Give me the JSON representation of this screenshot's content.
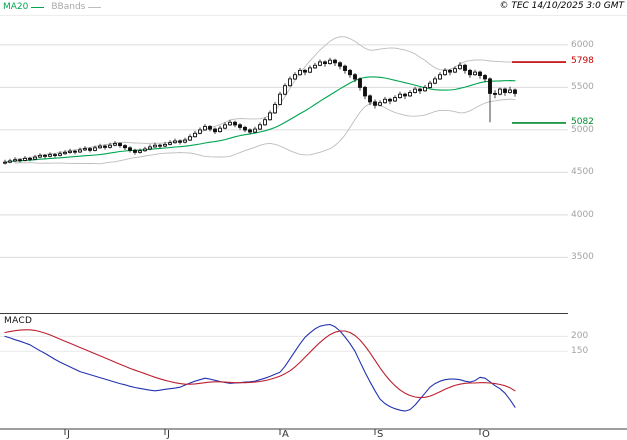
{
  "header": {
    "ma20_label": "MA20",
    "bbands_label": "BBands",
    "copyright": "© TEC 14/10/2025 3:0 GMT"
  },
  "colors": {
    "ma20": "#00a550",
    "bbands": "#bdbdbd",
    "grid": "#dcdcdc",
    "axis_text": "#a3a3a3",
    "candle": "#111111",
    "separator": "#3c3c3c",
    "resistance": "#c00000",
    "support": "#008a2e",
    "macd_line": "#2333b0",
    "macd_signal": "#bb2030"
  },
  "chart_data": [
    {
      "type": "candlestick",
      "title": "",
      "ylim": [
        2870,
        6340
      ],
      "yticks": [
        {
          "label": "6000",
          "value": 6000
        },
        {
          "label": "5500",
          "value": 5500
        },
        {
          "label": "5000",
          "value": 5000
        },
        {
          "label": "4500",
          "value": 4500
        },
        {
          "label": "4000",
          "value": 4000
        },
        {
          "label": "3500",
          "value": 3500
        }
      ],
      "levels": [
        {
          "label": "5798",
          "value": 5798,
          "color": "#c00000"
        },
        {
          "label": "5082",
          "value": 5082,
          "color": "#008a2e"
        }
      ],
      "overlays": [
        {
          "name": "MA20",
          "type": "sma",
          "window": 20
        },
        {
          "name": "BBands",
          "type": "bollinger",
          "window": 20,
          "stdev": 2
        }
      ],
      "x_labels": [
        "J",
        "J",
        "A",
        "S",
        "O"
      ],
      "x_label_indices": [
        12,
        32,
        55,
        74,
        95
      ],
      "candles": [
        [
          4610,
          4648,
          4595,
          4620
        ],
        [
          4620,
          4662,
          4608,
          4635
        ],
        [
          4635,
          4678,
          4622,
          4650
        ],
        [
          4650,
          4666,
          4618,
          4640
        ],
        [
          4640,
          4692,
          4630,
          4665
        ],
        [
          4665,
          4684,
          4632,
          4655
        ],
        [
          4655,
          4706,
          4645,
          4680
        ],
        [
          4680,
          4726,
          4668,
          4700
        ],
        [
          4700,
          4718,
          4664,
          4690
        ],
        [
          4690,
          4736,
          4678,
          4710
        ],
        [
          4710,
          4728,
          4676,
          4700
        ],
        [
          4700,
          4748,
          4688,
          4720
        ],
        [
          4720,
          4762,
          4706,
          4735
        ],
        [
          4735,
          4778,
          4722,
          4750
        ],
        [
          4750,
          4768,
          4714,
          4740
        ],
        [
          4740,
          4792,
          4728,
          4765
        ],
        [
          4765,
          4808,
          4752,
          4780
        ],
        [
          4780,
          4798,
          4736,
          4760
        ],
        [
          4760,
          4816,
          4748,
          4790
        ],
        [
          4790,
          4838,
          4778,
          4810
        ],
        [
          4810,
          4828,
          4768,
          4795
        ],
        [
          4795,
          4848,
          4782,
          4820
        ],
        [
          4820,
          4868,
          4806,
          4840
        ],
        [
          4840,
          4856,
          4790,
          4815
        ],
        [
          4815,
          4832,
          4764,
          4790
        ],
        [
          4790,
          4806,
          4734,
          4760
        ],
        [
          4760,
          4778,
          4710,
          4735
        ],
        [
          4735,
          4782,
          4722,
          4755
        ],
        [
          4755,
          4802,
          4742,
          4775
        ],
        [
          4775,
          4828,
          4762,
          4800
        ],
        [
          4800,
          4848,
          4788,
          4820
        ],
        [
          4820,
          4838,
          4782,
          4810
        ],
        [
          4810,
          4858,
          4798,
          4830
        ],
        [
          4830,
          4878,
          4818,
          4850
        ],
        [
          4850,
          4898,
          4838,
          4870
        ],
        [
          4870,
          4888,
          4828,
          4855
        ],
        [
          4855,
          4908,
          4842,
          4880
        ],
        [
          4880,
          4948,
          4868,
          4920
        ],
        [
          4920,
          4988,
          4908,
          4960
        ],
        [
          4960,
          5028,
          4948,
          5000
        ],
        [
          5000,
          5068,
          4988,
          5040
        ],
        [
          5040,
          5058,
          4982,
          5010
        ],
        [
          5010,
          5028,
          4952,
          4980
        ],
        [
          4980,
          5048,
          4968,
          5020
        ],
        [
          5020,
          5088,
          5008,
          5060
        ],
        [
          5060,
          5118,
          5048,
          5090
        ],
        [
          5090,
          5108,
          5032,
          5060
        ],
        [
          5060,
          5078,
          5002,
          5030
        ],
        [
          5030,
          5048,
          4972,
          5000
        ],
        [
          5000,
          5018,
          4948,
          4975
        ],
        [
          4975,
          5038,
          4962,
          5010
        ],
        [
          5010,
          5088,
          4998,
          5060
        ],
        [
          5060,
          5148,
          5048,
          5120
        ],
        [
          5120,
          5228,
          5108,
          5200
        ],
        [
          5200,
          5328,
          5188,
          5300
        ],
        [
          5300,
          5448,
          5288,
          5420
        ],
        [
          5420,
          5548,
          5408,
          5520
        ],
        [
          5520,
          5628,
          5508,
          5600
        ],
        [
          5600,
          5678,
          5588,
          5650
        ],
        [
          5650,
          5728,
          5638,
          5700
        ],
        [
          5700,
          5718,
          5642,
          5680
        ],
        [
          5680,
          5758,
          5668,
          5730
        ],
        [
          5730,
          5788,
          5718,
          5760
        ],
        [
          5760,
          5828,
          5748,
          5800
        ],
        [
          5800,
          5818,
          5742,
          5780
        ],
        [
          5780,
          5848,
          5768,
          5820
        ],
        [
          5820,
          5838,
          5752,
          5790
        ],
        [
          5790,
          5808,
          5712,
          5750
        ],
        [
          5750,
          5768,
          5662,
          5700
        ],
        [
          5700,
          5718,
          5612,
          5650
        ],
        [
          5650,
          5668,
          5562,
          5600
        ],
        [
          5600,
          5618,
          5462,
          5500
        ],
        [
          5500,
          5518,
          5362,
          5400
        ],
        [
          5400,
          5418,
          5292,
          5330
        ],
        [
          5330,
          5358,
          5252,
          5290
        ],
        [
          5290,
          5348,
          5278,
          5320
        ],
        [
          5320,
          5388,
          5308,
          5360
        ],
        [
          5360,
          5378,
          5302,
          5340
        ],
        [
          5340,
          5408,
          5328,
          5380
        ],
        [
          5380,
          5448,
          5368,
          5420
        ],
        [
          5420,
          5438,
          5362,
          5400
        ],
        [
          5400,
          5468,
          5388,
          5440
        ],
        [
          5440,
          5508,
          5428,
          5480
        ],
        [
          5480,
          5498,
          5422,
          5460
        ],
        [
          5460,
          5528,
          5448,
          5500
        ],
        [
          5500,
          5578,
          5488,
          5550
        ],
        [
          5550,
          5628,
          5538,
          5600
        ],
        [
          5600,
          5678,
          5588,
          5650
        ],
        [
          5650,
          5728,
          5638,
          5700
        ],
        [
          5700,
          5718,
          5642,
          5680
        ],
        [
          5680,
          5748,
          5668,
          5720
        ],
        [
          5720,
          5798,
          5708,
          5760
        ],
        [
          5760,
          5778,
          5662,
          5700
        ],
        [
          5700,
          5718,
          5612,
          5650
        ],
        [
          5650,
          5708,
          5638,
          5680
        ],
        [
          5680,
          5698,
          5602,
          5640
        ],
        [
          5640,
          5658,
          5562,
          5600
        ],
        [
          5600,
          5618,
          5090,
          5430
        ],
        [
          5430,
          5468,
          5372,
          5420
        ],
        [
          5420,
          5498,
          5408,
          5480
        ],
        [
          5480,
          5498,
          5402,
          5440
        ],
        [
          5440,
          5508,
          5428,
          5470
        ],
        [
          5470,
          5488,
          5392,
          5430
        ]
      ]
    },
    {
      "type": "line",
      "name": "MACD",
      "ylim": [
        -110,
        275
      ],
      "yticks": [
        {
          "label": "200",
          "value": 200
        },
        {
          "label": "150",
          "value": 150
        }
      ],
      "series": [
        {
          "name": "macd",
          "color": "#2333b0",
          "values": [
            200,
            195,
            189,
            184,
            178,
            172,
            162,
            152,
            143,
            133,
            123,
            114,
            106,
            98,
            90,
            82,
            77,
            72,
            67,
            62,
            57,
            52,
            47,
            42,
            38,
            33,
            29,
            26,
            23,
            20,
            18,
            20,
            23,
            25,
            27,
            30,
            37,
            44,
            50,
            55,
            60,
            57,
            53,
            49,
            46,
            43,
            44,
            45,
            47,
            48,
            50,
            55,
            60,
            66,
            73,
            80,
            100,
            125,
            150,
            175,
            197,
            212,
            225,
            234,
            238,
            240,
            232,
            218,
            198,
            176,
            150,
            115,
            80,
            48,
            18,
            -10,
            -25,
            -35,
            -42,
            -47,
            -50,
            -45,
            -30,
            -10,
            10,
            30,
            42,
            50,
            55,
            57,
            57,
            55,
            50,
            47,
            52,
            63,
            60,
            48,
            35,
            25,
            10,
            -12,
            -37
          ]
        },
        {
          "name": "signal",
          "color": "#bb2030",
          "values": [
            213,
            216,
            219,
            221,
            222,
            222,
            220,
            216,
            211,
            205,
            198,
            191,
            184,
            177,
            170,
            163,
            156,
            149,
            142,
            135,
            128,
            121,
            114,
            107,
            100,
            93,
            87,
            81,
            75,
            69,
            63,
            58,
            53,
            49,
            45,
            42,
            40,
            40,
            41,
            43,
            45,
            47,
            48,
            48,
            47,
            46,
            45,
            45,
            45,
            46,
            47,
            49,
            52,
            56,
            61,
            67,
            75,
            85,
            98,
            113,
            130,
            147,
            164,
            180,
            194,
            206,
            214,
            218,
            218,
            213,
            203,
            188,
            168,
            145,
            120,
            95,
            72,
            52,
            35,
            21,
            10,
            2,
            -3,
            -5,
            -4,
            0,
            7,
            15,
            23,
            30,
            36,
            40,
            43,
            44,
            44,
            45,
            45,
            44,
            42,
            39,
            35,
            28,
            18
          ]
        }
      ]
    }
  ]
}
